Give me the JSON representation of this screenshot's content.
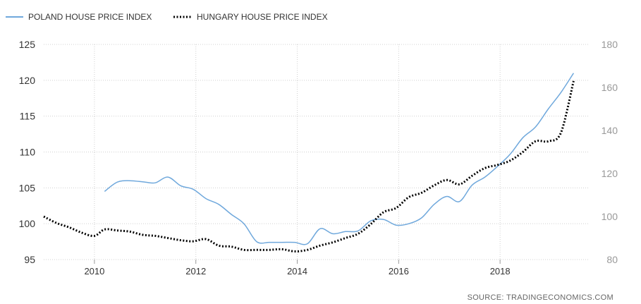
{
  "chart_data": {
    "type": "line",
    "title": "",
    "source": "SOURCE: TRADINGECONOMICS.COM",
    "grid": true,
    "legend_position": "top-left",
    "x_axis": {
      "range": [
        2009.0,
        2019.75
      ],
      "ticks": [
        "2010",
        "2012",
        "2014",
        "2016",
        "2018"
      ]
    },
    "y_left": {
      "range": [
        95,
        125
      ],
      "ticks": [
        "95",
        "100",
        "105",
        "110",
        "115",
        "120",
        "125"
      ]
    },
    "y_right": {
      "range": [
        80,
        180
      ],
      "ticks": [
        "80",
        "100",
        "120",
        "140",
        "160",
        "180"
      ]
    },
    "series": [
      {
        "name": "POLAND HOUSE PRICE INDEX",
        "axis": "left",
        "color": "#6fa8dc",
        "style": "solid",
        "x": [
          2010.2,
          2010.45,
          2010.7,
          2011.0,
          2011.2,
          2011.45,
          2011.7,
          2011.95,
          2012.2,
          2012.45,
          2012.7,
          2012.95,
          2013.2,
          2013.45,
          2013.7,
          2013.95,
          2014.2,
          2014.45,
          2014.7,
          2014.95,
          2015.2,
          2015.45,
          2015.7,
          2015.95,
          2016.2,
          2016.45,
          2016.7,
          2016.95,
          2017.2,
          2017.45,
          2017.7,
          2017.95,
          2018.2,
          2018.45,
          2018.7,
          2018.95,
          2019.2,
          2019.45
        ],
        "values": [
          104.5,
          105.8,
          106.0,
          105.8,
          105.7,
          106.5,
          105.3,
          104.8,
          103.5,
          102.7,
          101.3,
          100.0,
          97.5,
          97.4,
          97.4,
          97.4,
          97.2,
          99.3,
          98.6,
          98.9,
          99.0,
          100.4,
          100.6,
          99.8,
          100.0,
          100.8,
          102.7,
          103.8,
          103.1,
          105.4,
          106.5,
          108.0,
          109.7,
          112.0,
          113.5,
          116.0,
          118.3,
          121.0
        ]
      },
      {
        "name": "HUNGARY HOUSE PRICE INDEX",
        "axis": "right",
        "color": "#000000",
        "style": "dotted",
        "x": [
          2009.0,
          2009.25,
          2009.5,
          2009.75,
          2010.0,
          2010.2,
          2010.45,
          2010.7,
          2010.95,
          2011.2,
          2011.45,
          2011.7,
          2011.95,
          2012.2,
          2012.45,
          2012.7,
          2012.95,
          2013.2,
          2013.45,
          2013.7,
          2013.95,
          2014.2,
          2014.45,
          2014.7,
          2014.95,
          2015.2,
          2015.45,
          2015.7,
          2015.95,
          2016.2,
          2016.45,
          2016.7,
          2016.95,
          2017.2,
          2017.45,
          2017.7,
          2017.95,
          2018.2,
          2018.45,
          2018.7,
          2018.95,
          2019.2,
          2019.45
        ],
        "values": [
          100.0,
          97.0,
          95.0,
          92.5,
          91.0,
          94.0,
          93.5,
          93.0,
          91.5,
          91.0,
          90.0,
          89.0,
          88.5,
          89.5,
          86.5,
          86.0,
          84.5,
          84.5,
          84.5,
          84.8,
          83.8,
          84.5,
          86.5,
          88.0,
          90.0,
          92.0,
          96.5,
          102.0,
          104.0,
          109.0,
          111.0,
          114.5,
          117.0,
          115.0,
          119.0,
          122.5,
          124.0,
          126.0,
          130.0,
          135.0,
          135.0,
          139.0,
          163.0
        ]
      }
    ]
  }
}
